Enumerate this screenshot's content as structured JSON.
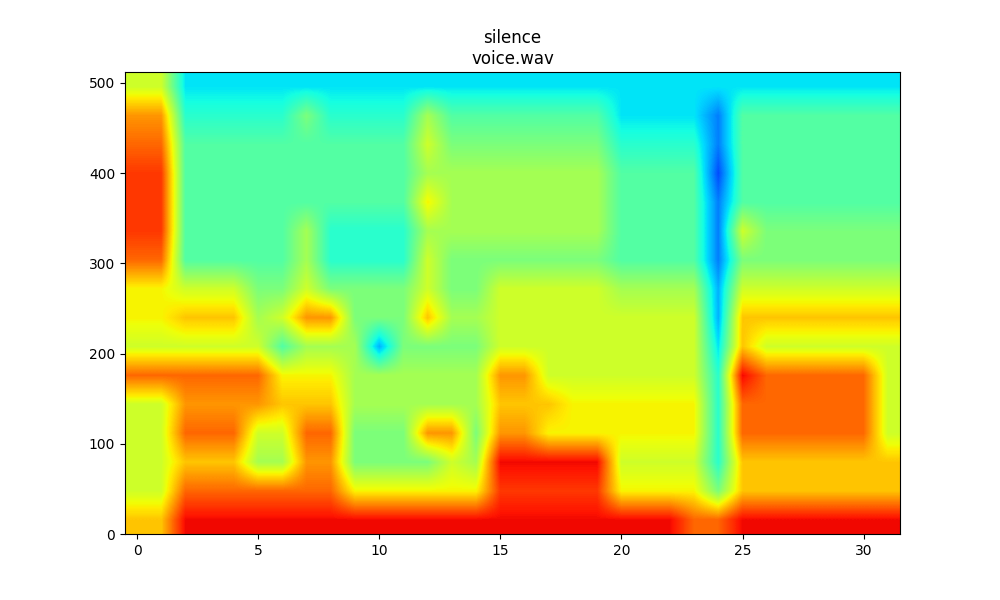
{
  "chart_data": {
    "type": "heatmap",
    "title": "silence\nvoice.wav",
    "xlim": [
      -0.5,
      31.5
    ],
    "ylim": [
      0,
      512
    ],
    "xticks": [
      0,
      5,
      10,
      15,
      20,
      25,
      30
    ],
    "yticks": [
      0,
      100,
      200,
      300,
      400,
      500
    ],
    "value_range": [
      0,
      10
    ],
    "cells": [
      [
        7,
        7,
        9,
        9,
        9,
        9,
        9,
        9,
        9,
        9,
        9,
        9,
        9,
        9,
        9,
        9,
        9,
        9,
        9,
        9,
        9,
        9,
        9,
        8,
        8,
        9,
        9,
        9,
        9,
        9,
        9,
        9
      ],
      [
        6,
        6,
        8,
        8,
        8,
        8,
        8,
        8,
        8,
        6.5,
        6.5,
        6.5,
        6.5,
        6.5,
        6.5,
        8.5,
        8.5,
        8.5,
        8.5,
        8.5,
        6.5,
        6.5,
        6.5,
        6.5,
        5,
        7,
        7,
        7,
        7,
        7,
        7,
        7
      ],
      [
        6,
        6,
        7,
        7,
        7,
        5.5,
        5.5,
        7.5,
        7.5,
        5,
        5,
        5,
        5,
        6,
        5.5,
        9,
        9,
        9,
        9,
        9,
        6,
        6,
        6,
        6,
        4,
        7,
        7,
        7,
        7,
        7,
        7,
        7
      ],
      [
        6,
        6,
        8,
        8,
        8,
        6,
        6,
        8,
        8,
        5,
        5,
        5,
        7.5,
        7.5,
        5,
        7.5,
        7.5,
        6.5,
        6.5,
        6.5,
        6.5,
        6.5,
        6.5,
        6.5,
        4,
        8,
        8,
        8,
        8,
        8,
        8,
        6
      ],
      [
        6,
        6,
        7.5,
        7.5,
        7.5,
        7.5,
        7,
        7,
        7,
        5.5,
        5.5,
        5.5,
        5.5,
        5.5,
        5.5,
        7,
        7,
        7,
        6.5,
        6.5,
        6.5,
        6.5,
        6.5,
        6.5,
        4,
        8,
        8,
        8,
        8,
        8,
        8,
        6
      ],
      [
        8,
        8,
        8,
        8,
        8,
        8,
        6.5,
        6.5,
        6.5,
        5.5,
        5.5,
        5.5,
        5.5,
        5.5,
        5.5,
        7.5,
        7.5,
        6,
        6,
        6,
        6,
        6,
        6,
        6,
        4,
        9,
        8,
        8,
        8,
        8,
        8,
        6
      ],
      [
        6,
        6,
        6,
        6,
        6,
        6,
        4.5,
        5.5,
        5.5,
        5.5,
        3,
        5,
        5,
        5,
        5,
        6,
        6,
        6,
        6,
        6,
        6,
        6,
        6,
        6,
        3.5,
        7,
        6,
        6,
        6,
        6,
        6,
        6
      ],
      [
        6.5,
        6.5,
        7,
        7,
        7,
        5.5,
        6,
        7.5,
        7.5,
        5,
        5,
        5,
        7,
        5.5,
        5.5,
        6,
        6,
        6,
        6,
        6,
        6,
        6,
        6,
        6,
        3,
        7,
        7,
        7,
        7,
        7,
        7,
        7
      ],
      [
        6.5,
        6.5,
        6,
        6,
        6,
        5,
        5,
        6,
        5,
        5,
        5,
        5,
        6,
        5,
        5,
        6,
        6,
        6,
        6,
        6,
        5.5,
        5.5,
        5.5,
        5.5,
        3,
        6,
        6,
        6,
        6,
        6,
        6,
        6
      ],
      [
        8,
        8,
        4.5,
        4.5,
        4.5,
        4.5,
        4.5,
        5.5,
        4,
        4,
        4,
        4,
        6,
        5,
        5,
        5,
        5,
        5,
        5,
        5,
        4.5,
        4.5,
        4.5,
        4.5,
        2.5,
        5,
        5,
        5,
        5,
        5,
        5,
        5
      ],
      [
        8.5,
        8.5,
        4.5,
        4.5,
        4.5,
        4.5,
        4.5,
        5.5,
        4,
        4,
        4,
        4,
        5.5,
        5.5,
        5.5,
        5.5,
        5.5,
        5.5,
        5.5,
        5.5,
        4.5,
        4.5,
        4.5,
        4.5,
        2.5,
        6,
        5,
        5,
        5,
        5,
        5,
        5
      ],
      [
        8.5,
        8.5,
        4.5,
        4.5,
        4.5,
        4.5,
        4.5,
        4.5,
        4.5,
        4.5,
        4.5,
        4.5,
        6.5,
        5.5,
        5.5,
        5.5,
        5.5,
        5.5,
        5.5,
        5.5,
        4.5,
        4.5,
        4.5,
        4.5,
        2.5,
        4.5,
        4.5,
        4.5,
        4.5,
        4.5,
        4.5,
        4.5
      ],
      [
        8.5,
        8.5,
        4.5,
        4.5,
        4.5,
        4.5,
        4.5,
        4.5,
        4.5,
        4.5,
        4.5,
        4.5,
        5.5,
        5.5,
        5.5,
        5.5,
        5.5,
        5.5,
        5.5,
        5.5,
        4.5,
        4.5,
        4.5,
        4.5,
        2,
        4.5,
        4.5,
        4.5,
        4.5,
        4.5,
        4.5,
        4.5
      ],
      [
        8,
        8,
        4.5,
        4.5,
        4.5,
        4.5,
        4.5,
        4.5,
        4.5,
        4.5,
        4.5,
        4.5,
        6,
        5,
        5,
        5,
        5,
        5,
        5,
        5,
        4,
        4,
        4,
        4,
        2.5,
        4.5,
        4.5,
        4.5,
        4.5,
        4.5,
        4.5,
        4.5
      ],
      [
        7.5,
        7.5,
        4,
        4,
        4,
        4,
        4,
        5,
        4,
        4,
        4,
        4,
        5.5,
        4.5,
        4.5,
        4.5,
        4.5,
        4.5,
        4.5,
        4.5,
        3.5,
        3.5,
        3.5,
        3.5,
        2.5,
        4.5,
        4.5,
        4.5,
        4.5,
        4.5,
        4.5,
        4.5
      ],
      [
        6,
        6,
        3.5,
        3.5,
        3.5,
        3.5,
        3.5,
        3.5,
        3.5,
        3.5,
        3.5,
        3.5,
        3.5,
        3.5,
        3.5,
        3.5,
        3.5,
        3.5,
        3.5,
        3.5,
        3.5,
        3.5,
        3.5,
        3.5,
        3.5,
        3.5,
        3.5,
        3.5,
        3.5,
        3.5,
        3.5,
        3.5
      ]
    ]
  }
}
